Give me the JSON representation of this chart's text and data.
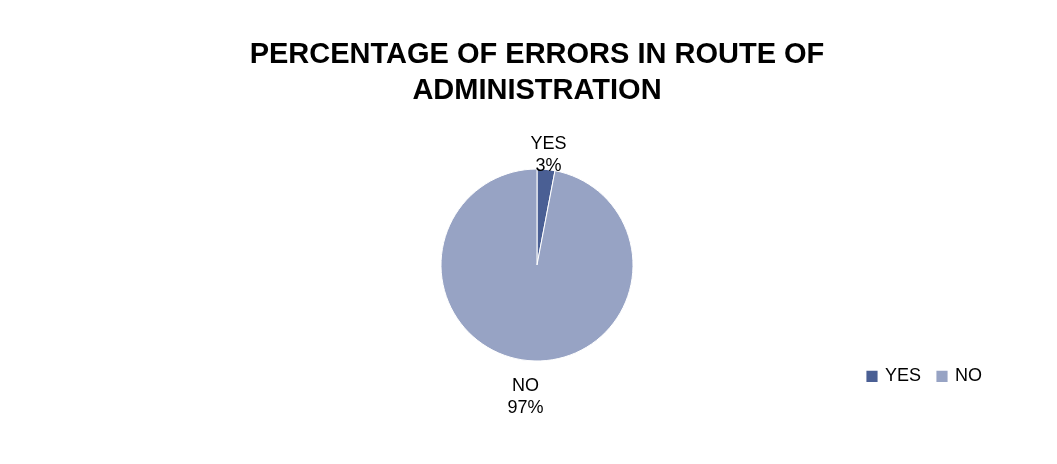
{
  "chart_data": {
    "type": "pie",
    "title": "PERCENTAGE OF ERRORS IN ROUTE OF ADMINISTRATION",
    "categories": [
      "YES",
      "NO"
    ],
    "values": [
      3,
      97
    ],
    "colors": [
      "#4a5f94",
      "#97a3c4"
    ],
    "value_labels": [
      "3%",
      "97%"
    ],
    "legend": "right"
  }
}
